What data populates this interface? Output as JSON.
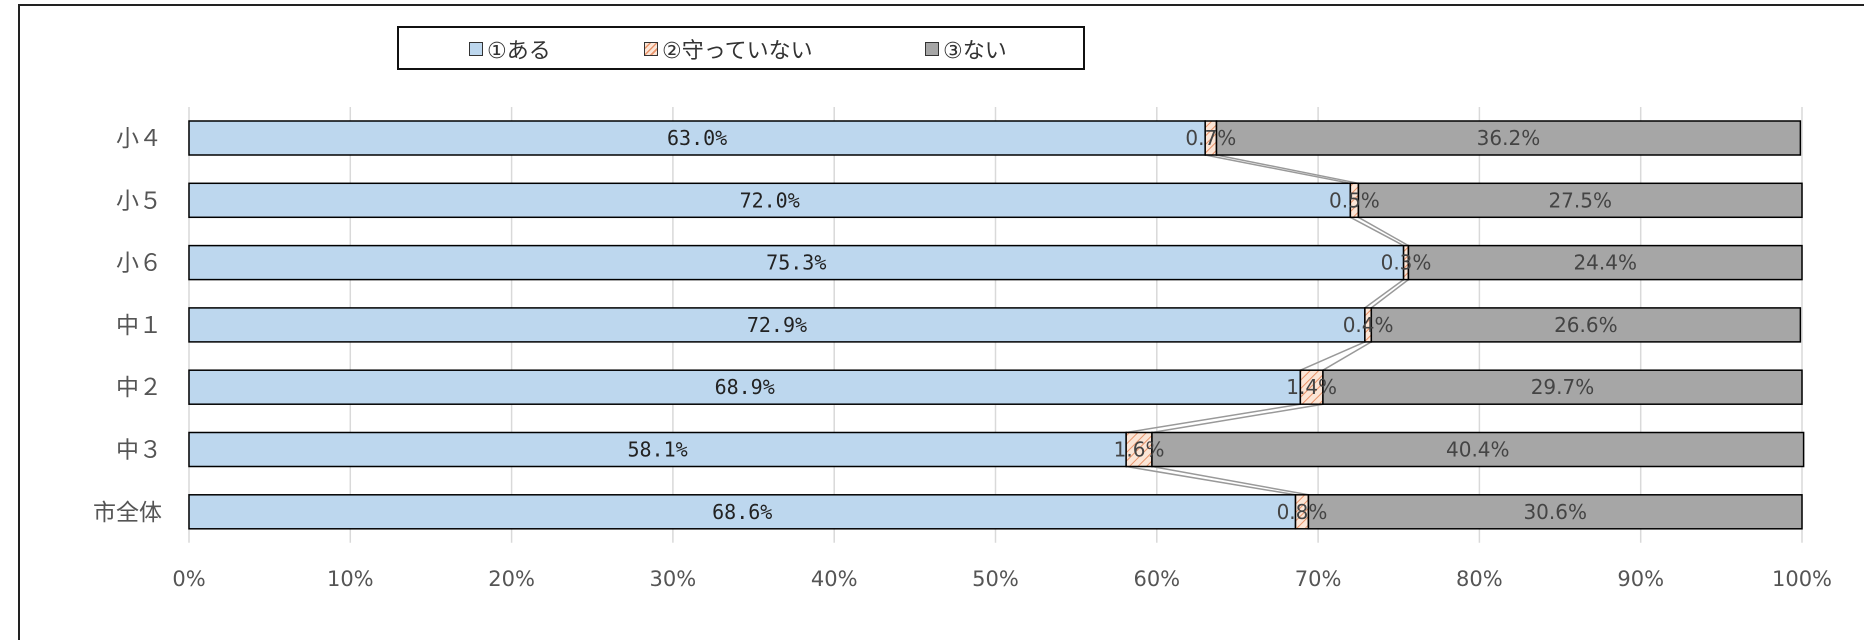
{
  "colors": {
    "aru": "#bdd7ee",
    "mamottenai": "#fbe5d6",
    "mamottenai_hatch": "#e8936a",
    "nai": "#a6a6a6",
    "border": "#000000",
    "grid": "#d9d9d9",
    "connector": "#999999"
  },
  "legend": {
    "items": [
      "①ある",
      "②守っていない",
      "③ない"
    ]
  },
  "chart_data": {
    "type": "bar",
    "orientation": "horizontal",
    "stacked": "percent",
    "categories": [
      "小４",
      "小５",
      "小６",
      "中１",
      "中２",
      "中３",
      "市全体"
    ],
    "series": [
      {
        "name": "①ある",
        "values": [
          63.0,
          72.0,
          75.3,
          72.9,
          68.9,
          58.1,
          68.6
        ],
        "labels": [
          "63.0%",
          "72.0%",
          "75.3%",
          "72.9%",
          "68.9%",
          "58.1%",
          "68.6%"
        ]
      },
      {
        "name": "②守っていない",
        "values": [
          0.7,
          0.5,
          0.3,
          0.4,
          1.4,
          1.6,
          0.8
        ],
        "labels": [
          "0.7%",
          "0.5%",
          "0.3%",
          "0.4%",
          "1.4%",
          "1.6%",
          "0.8%"
        ]
      },
      {
        "name": "③ない",
        "values": [
          36.2,
          27.5,
          24.4,
          26.6,
          29.7,
          40.4,
          30.6
        ],
        "labels": [
          "36.2%",
          "27.5%",
          "24.4%",
          "26.6%",
          "29.7%",
          "40.4%",
          "30.6%"
        ]
      }
    ],
    "xlim": [
      0,
      100
    ],
    "xticks": [
      "0%",
      "10%",
      "20%",
      "30%",
      "40%",
      "50%",
      "60%",
      "70%",
      "80%",
      "90%",
      "100%"
    ],
    "grid": true,
    "series_lines": true,
    "legend_position": "top"
  }
}
